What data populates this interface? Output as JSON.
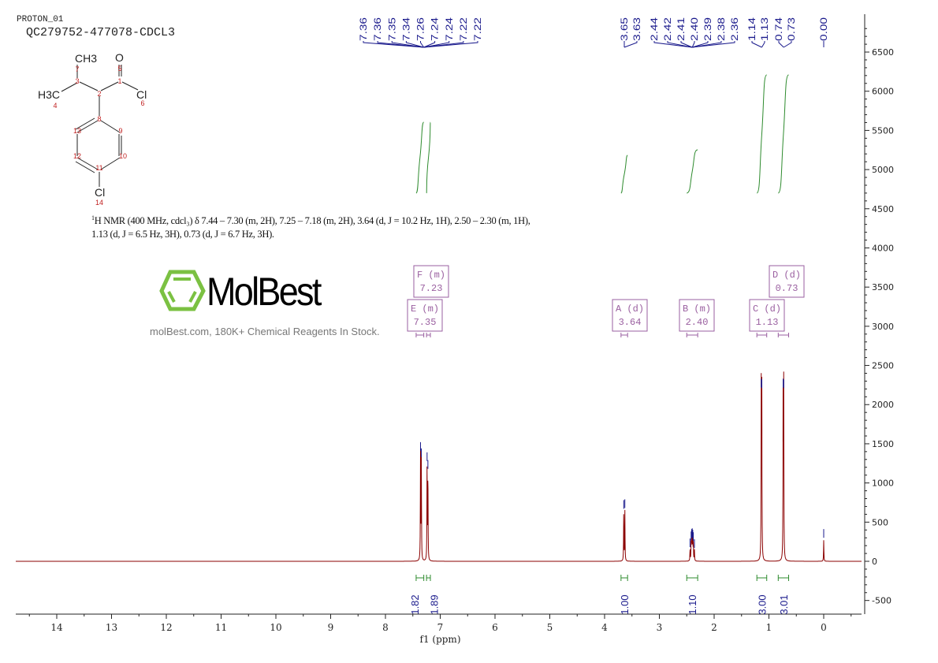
{
  "header": {
    "experiment": "PROTON_01",
    "sample": "QC279752-477078-CDCL3"
  },
  "description": {
    "nucleus_sup": "1",
    "text": "H NMR (400 MHz, cdcl₃) δ 7.44 – 7.30 (m, 2H), 7.25 – 7.18 (m, 2H), 3.64 (d, J = 10.2 Hz, 1H), 2.50 – 2.30 (m, 1H), 1.13 (d, J = 6.5 Hz, 3H), 0.73 (d, J = 6.7 Hz, 3H)."
  },
  "structure": {
    "atoms": [
      "CH3",
      "O",
      "H3C",
      "Cl",
      "Cl"
    ],
    "numbers": [
      "1",
      "2",
      "3",
      "4",
      "5",
      "6",
      "7",
      "8",
      "9",
      "10",
      "11",
      "12",
      "13",
      "14"
    ]
  },
  "watermark": {
    "logo": "MolBest",
    "tagline": "molBest.com, 180K+ Chemical Reagents In Stock."
  },
  "colors": {
    "spectrum": "#8b0000",
    "peak_labels": "#1a1a8c",
    "integrals": "#2e8b2e",
    "multiplets": "#9a5fa0",
    "logo_green": "#7bc142"
  },
  "chart_data": {
    "type": "line",
    "xlabel": "f1 (ppm)",
    "xlim": [
      14.8,
      -0.7
    ],
    "x_reversed": true,
    "ylim": [
      -700,
      6900
    ],
    "x_ticks": [
      14,
      13,
      12,
      11,
      10,
      9,
      8,
      7,
      6,
      5,
      4,
      3,
      2,
      1,
      0
    ],
    "y_ticks": [
      -500,
      0,
      500,
      1000,
      1500,
      2000,
      2500,
      3000,
      3500,
      4000,
      4500,
      5000,
      5500,
      6000,
      6500
    ],
    "peaks": [
      {
        "ppm": 7.36,
        "intensity": 1380
      },
      {
        "ppm": 7.345,
        "intensity": 1300
      },
      {
        "ppm": 7.24,
        "intensity": 1250
      },
      {
        "ppm": 7.225,
        "intensity": 1150
      },
      {
        "ppm": 3.65,
        "intensity": 640
      },
      {
        "ppm": 3.63,
        "intensity": 650
      },
      {
        "ppm": 2.44,
        "intensity": 150
      },
      {
        "ppm": 2.42,
        "intensity": 240
      },
      {
        "ppm": 2.41,
        "intensity": 270
      },
      {
        "ppm": 2.4,
        "intensity": 280
      },
      {
        "ppm": 2.39,
        "intensity": 260
      },
      {
        "ppm": 2.38,
        "intensity": 230
      },
      {
        "ppm": 2.36,
        "intensity": 140
      },
      {
        "ppm": 1.14,
        "intensity": 2190
      },
      {
        "ppm": 1.13,
        "intensity": 2180
      },
      {
        "ppm": 0.74,
        "intensity": 2190
      },
      {
        "ppm": 0.73,
        "intensity": 2180
      },
      {
        "ppm": 0.0,
        "intensity": 270
      }
    ],
    "peak_labels": [
      {
        "group": [
          7.36,
          7.24
        ],
        "labels": [
          "7.36",
          "7.36",
          "7.35",
          "7.34",
          "7.26",
          "7.24",
          "7.24",
          "7.22",
          "7.22"
        ]
      },
      {
        "group": [
          3.64,
          3.64
        ],
        "labels": [
          "3.65",
          "3.63"
        ]
      },
      {
        "group": [
          2.4,
          2.4
        ],
        "labels": [
          "2.44",
          "2.42",
          "2.41",
          "2.40",
          "2.39",
          "2.38",
          "2.36"
        ]
      },
      {
        "group": [
          1.13,
          1.13
        ],
        "labels": [
          "1.14",
          "1.13"
        ]
      },
      {
        "group": [
          0.73,
          0.73
        ],
        "labels": [
          "0.74",
          "0.73"
        ]
      },
      {
        "group": [
          0.0,
          0.0
        ],
        "labels": [
          "0.00"
        ]
      }
    ],
    "integrals": [
      {
        "from": 7.44,
        "to": 7.3,
        "value": "1.82"
      },
      {
        "from": 7.25,
        "to": 7.18,
        "value": "1.89"
      },
      {
        "from": 3.7,
        "to": 3.58,
        "value": "1.00"
      },
      {
        "from": 2.5,
        "to": 2.3,
        "value": "1.10"
      },
      {
        "from": 1.22,
        "to": 1.04,
        "value": "3.00"
      },
      {
        "from": 0.83,
        "to": 0.64,
        "value": "3.01"
      }
    ],
    "multiplets": [
      {
        "label": "F (m)",
        "shift": "7.23",
        "from": 7.25,
        "to": 7.18
      },
      {
        "label": "E (m)",
        "shift": "7.35",
        "from": 7.44,
        "to": 7.3
      },
      {
        "label": "A (d)",
        "shift": "3.64",
        "from": 3.7,
        "to": 3.58
      },
      {
        "label": "B (m)",
        "shift": "2.40",
        "from": 2.5,
        "to": 2.3
      },
      {
        "label": "C (d)",
        "shift": "1.13",
        "from": 1.22,
        "to": 1.04
      },
      {
        "label": "D (d)",
        "shift": "0.73",
        "from": 0.83,
        "to": 0.64
      }
    ]
  }
}
